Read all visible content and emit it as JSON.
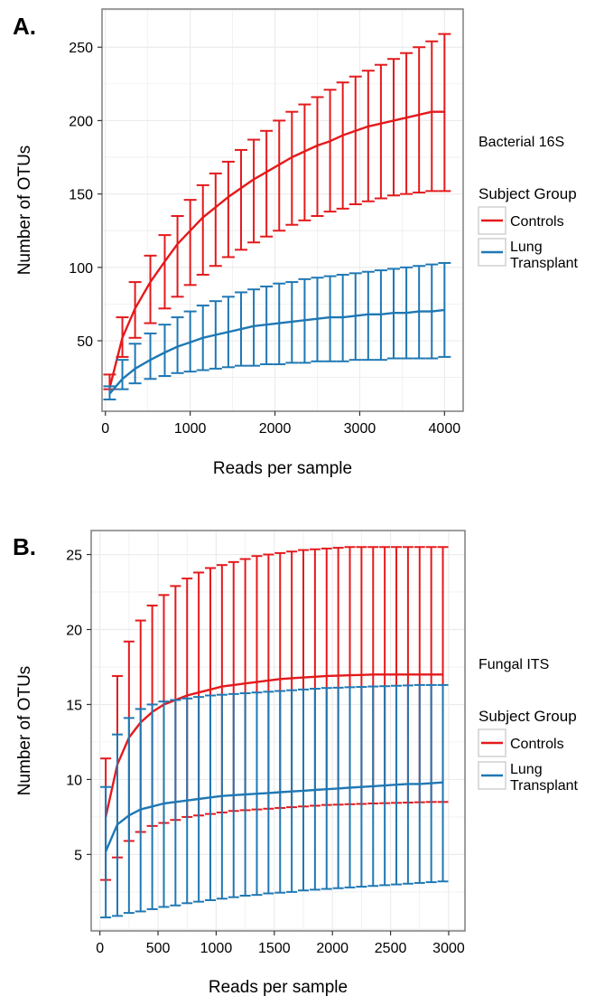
{
  "chart_data": [
    {
      "type": "line",
      "panel_label": "A.",
      "xlabel": "Reads per sample",
      "ylabel": "Number of OTUs",
      "xlim": [
        -40,
        4220
      ],
      "ylim": [
        2,
        276
      ],
      "x_ticks": [
        0,
        1000,
        2000,
        3000,
        4000
      ],
      "y_ticks": [
        50,
        100,
        150,
        200,
        250
      ],
      "grid": true,
      "legend_placement": "right",
      "legend_heading": "Bacterial 16S",
      "legend_title": "Subject Group",
      "colors": {
        "Controls": "#e41a1c",
        "Lung Transplant": "#1f78b4"
      },
      "x": [
        50,
        200,
        350,
        530,
        700,
        850,
        1000,
        1150,
        1300,
        1450,
        1600,
        1750,
        1900,
        2050,
        2200,
        2350,
        2500,
        2650,
        2800,
        2950,
        3100,
        3250,
        3400,
        3550,
        3700,
        3850,
        4000
      ],
      "series": [
        {
          "name": "Controls",
          "legend_label": [
            "Controls"
          ],
          "mean": [
            18,
            52,
            72,
            90,
            104,
            116,
            125,
            134,
            141,
            148,
            154,
            160,
            165,
            170,
            175,
            179,
            183,
            186,
            190,
            193,
            196,
            198,
            200,
            202,
            204,
            206,
            206
          ],
          "upper": [
            27,
            66,
            90,
            108,
            122,
            135,
            146,
            156,
            164,
            172,
            180,
            187,
            193,
            200,
            206,
            211,
            216,
            221,
            226,
            230,
            234,
            238,
            242,
            246,
            250,
            254,
            259
          ],
          "lower": [
            17,
            39,
            52,
            62,
            72,
            80,
            88,
            95,
            101,
            107,
            112,
            117,
            121,
            125,
            129,
            132,
            135,
            138,
            140,
            143,
            145,
            147,
            149,
            150,
            151,
            152,
            152
          ]
        },
        {
          "name": "Lung Transplant",
          "legend_label": [
            "Lung",
            "Transplant"
          ],
          "mean": [
            14,
            24,
            31,
            37,
            42,
            46,
            49,
            52,
            54,
            56,
            58,
            60,
            61,
            62,
            63,
            64,
            65,
            66,
            66,
            67,
            68,
            68,
            69,
            69,
            70,
            70,
            71
          ],
          "upper": [
            19,
            37,
            48,
            55,
            61,
            66,
            70,
            74,
            77,
            80,
            83,
            85,
            87,
            89,
            90,
            92,
            93,
            94,
            95,
            96,
            97,
            98,
            99,
            100,
            101,
            102,
            103
          ],
          "lower": [
            10,
            17,
            21,
            24,
            26,
            28,
            29,
            30,
            31,
            32,
            33,
            33,
            34,
            34,
            35,
            35,
            36,
            36,
            36,
            37,
            37,
            37,
            38,
            38,
            38,
            38,
            39
          ]
        }
      ]
    },
    {
      "type": "line",
      "panel_label": "B.",
      "xlabel": "Reads per sample",
      "ylabel": "Number of OTUs",
      "xlim": [
        -75,
        3140
      ],
      "ylim": [
        -0.1,
        26.6
      ],
      "x_ticks": [
        0,
        500,
        1000,
        1500,
        2000,
        2500,
        3000
      ],
      "y_ticks": [
        5,
        10,
        15,
        20,
        25
      ],
      "grid": true,
      "legend_placement": "right",
      "legend_heading": "Fungal ITS",
      "legend_title": "Subject Group",
      "colors": {
        "Controls": "#e41a1c",
        "Lung Transplant": "#1f78b4"
      },
      "x": [
        50,
        150,
        250,
        350,
        450,
        550,
        650,
        750,
        850,
        950,
        1050,
        1150,
        1250,
        1350,
        1450,
        1550,
        1650,
        1750,
        1850,
        1950,
        2050,
        2150,
        2250,
        2350,
        2450,
        2550,
        2650,
        2750,
        2850,
        2950
      ],
      "series": [
        {
          "name": "Controls",
          "legend_label": [
            "Controls"
          ],
          "mean": [
            7.5,
            11,
            12.8,
            13.8,
            14.5,
            15.0,
            15.3,
            15.6,
            15.8,
            16.0,
            16.2,
            16.3,
            16.4,
            16.5,
            16.6,
            16.7,
            16.75,
            16.8,
            16.85,
            16.9,
            16.92,
            16.95,
            16.97,
            17.0,
            17.0,
            17.0,
            17.0,
            17.0,
            17.0,
            17.0
          ],
          "upper": [
            11.4,
            16.9,
            19.2,
            20.6,
            21.6,
            22.3,
            22.9,
            23.4,
            23.8,
            24.1,
            24.3,
            24.5,
            24.7,
            24.9,
            25.0,
            25.1,
            25.2,
            25.3,
            25.35,
            25.4,
            25.45,
            25.5,
            25.5,
            25.5,
            25.5,
            25.5,
            25.5,
            25.5,
            25.5,
            25.5
          ],
          "lower": [
            3.3,
            4.8,
            5.9,
            6.5,
            6.9,
            7.1,
            7.3,
            7.5,
            7.6,
            7.7,
            7.8,
            7.9,
            7.95,
            8.0,
            8.05,
            8.1,
            8.15,
            8.2,
            8.25,
            8.3,
            8.32,
            8.35,
            8.37,
            8.4,
            8.42,
            8.44,
            8.46,
            8.48,
            8.5,
            8.5
          ]
        },
        {
          "name": "Lung Transplant",
          "legend_label": [
            "Lung",
            "Transplant"
          ],
          "mean": [
            5.2,
            7.0,
            7.6,
            8.0,
            8.2,
            8.4,
            8.5,
            8.6,
            8.7,
            8.8,
            8.9,
            8.95,
            9.0,
            9.05,
            9.1,
            9.15,
            9.2,
            9.25,
            9.3,
            9.35,
            9.4,
            9.45,
            9.5,
            9.55,
            9.6,
            9.65,
            9.7,
            9.7,
            9.75,
            9.8
          ],
          "upper": [
            9.5,
            13.0,
            14.1,
            14.7,
            15.0,
            15.2,
            15.3,
            15.4,
            15.5,
            15.6,
            15.65,
            15.7,
            15.75,
            15.8,
            15.85,
            15.9,
            15.95,
            16.0,
            16.05,
            16.1,
            16.12,
            16.15,
            16.17,
            16.2,
            16.22,
            16.25,
            16.27,
            16.3,
            16.3,
            16.3
          ],
          "lower": [
            0.8,
            0.9,
            1.1,
            1.2,
            1.35,
            1.5,
            1.6,
            1.75,
            1.85,
            1.95,
            2.05,
            2.15,
            2.25,
            2.3,
            2.4,
            2.45,
            2.5,
            2.6,
            2.65,
            2.7,
            2.75,
            2.8,
            2.85,
            2.9,
            2.95,
            3.0,
            3.05,
            3.1,
            3.15,
            3.2
          ]
        }
      ]
    }
  ]
}
